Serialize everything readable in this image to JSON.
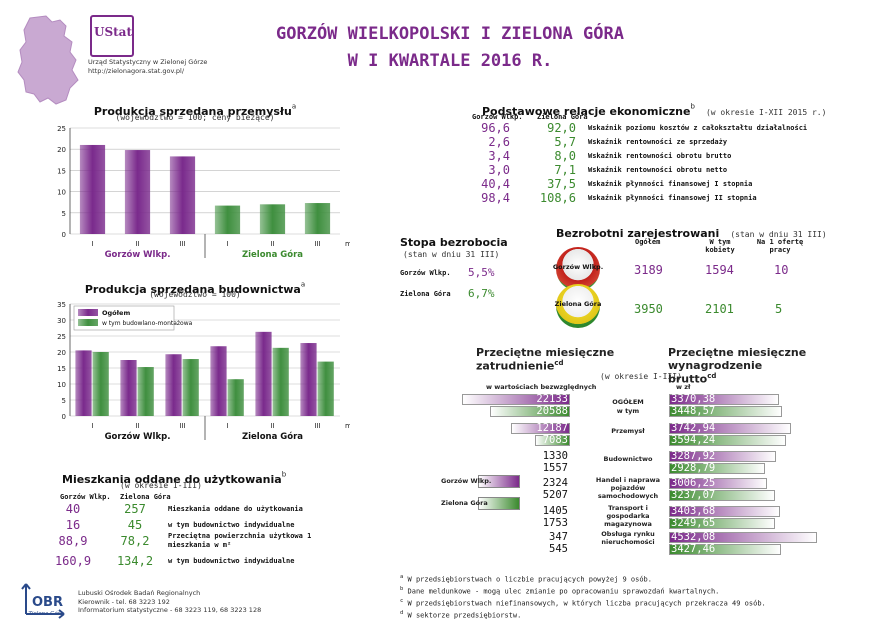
{
  "header": {
    "title_line1": "GORZÓW WIELKOPOLSKI I ZIELONA GÓRA",
    "title_line2": "W I KWARTALE 2016 R.",
    "office_name": "Urząd Statystyczny w Zielonej Górze",
    "office_url": "http://zielonagora.stat.gov.pl/",
    "logo_text": "UStat"
  },
  "colors": {
    "purple": "#7b2a8a",
    "green": "#3b8a2e",
    "bar_purple": "#7a2a8c",
    "bar_green": "#3f8f3f"
  },
  "chart_industry": {
    "title": "Produkcja sprzedana przemysłu",
    "title_sup": "a",
    "subtitle": "(województwo = 100; ceny bieżące)",
    "axis_unit": "miesiące"
  },
  "chart_construction": {
    "title": "Produkcja sprzedana budownictwa",
    "title_sup": "a",
    "subtitle": "(województwo = 100)",
    "legend_total": "Ogółem",
    "legend_sub": "w tym budowlano-montażowa",
    "axis_unit": "miesiące"
  },
  "chart_data": [
    {
      "type": "bar",
      "title": "Produkcja sprzedana przemysłu",
      "categories": [
        "I",
        "II",
        "III",
        "I",
        "II",
        "III"
      ],
      "groups": [
        "Gorzów Wlkp.",
        "Zielona Góra"
      ],
      "values": [
        21.0,
        19.8,
        18.3,
        6.7,
        7.0,
        7.3
      ],
      "ylim": [
        0,
        25
      ],
      "yticks": [
        0,
        5,
        10,
        15,
        20,
        25
      ],
      "xlabel": "miesiące",
      "grid": true
    },
    {
      "type": "bar",
      "title": "Produkcja sprzedana budownictwa",
      "categories": [
        "I",
        "II",
        "III",
        "I",
        "II",
        "III"
      ],
      "groups": [
        "Gorzów Wlkp.",
        "Zielona Góra"
      ],
      "series": [
        {
          "name": "Ogółem",
          "values": [
            20.5,
            17.5,
            19.3,
            21.8,
            26.3,
            22.8
          ]
        },
        {
          "name": "w tym budowlano-montażowa",
          "values": [
            20.0,
            15.3,
            17.8,
            11.5,
            21.3,
            17.0
          ]
        }
      ],
      "ylim": [
        0,
        35
      ],
      "yticks": [
        0,
        5,
        10,
        15,
        20,
        25,
        30,
        35
      ],
      "xlabel": "miesiące",
      "grid": true
    }
  ],
  "economic": {
    "title": "Podstawowe relacje ekonomiczne",
    "title_sup": "b",
    "period": "(w okresie I-XII 2015 r.)",
    "col_gw": "Gorzów Wlkp.",
    "col_zg": "Zielona Góra",
    "rows": [
      {
        "gw": "96,6",
        "zg": "92,0",
        "label": "Wskaźnik poziomu kosztów z całokształtu działalności"
      },
      {
        "gw": "2,6",
        "zg": "5,7",
        "label": "Wskaźnik rentowności ze sprzedaży"
      },
      {
        "gw": "3,4",
        "zg": "8,0",
        "label": "Wskaźnik rentowności obrotu brutto"
      },
      {
        "gw": "3,0",
        "zg": "7,1",
        "label": "Wskaźnik rentowności obrotu netto"
      },
      {
        "gw": "40,4",
        "zg": "37,5",
        "label": "Wskaźnik płynności finansowej I stopnia"
      },
      {
        "gw": "98,4",
        "zg": "108,6",
        "label": "Wskaźnik płynności finansowej II stopnia"
      }
    ]
  },
  "unemployment": {
    "title": "Bezrobotni zarejestrowani",
    "period": "(stan w dniu 31 III)",
    "col_total": "Ogółem",
    "col_women": "W tym kobiety",
    "col_offer": "Na 1 ofertę pracy",
    "gw_badge": "Gorzów Wlkp.",
    "zg_badge": "Zielona Góra",
    "gw_total": "3189",
    "gw_women": "1594",
    "gw_offer": "10",
    "zg_total": "3950",
    "zg_women": "2101",
    "zg_offer": "5",
    "rate_title": "Stopa bezrobocia",
    "rate_period": "(stan w dniu 31 III)",
    "rate_gw_label": "Gorzów Wlkp.",
    "rate_gw": "5,5%",
    "rate_zg_label": "Zielona Góra",
    "rate_zg": "6,7%"
  },
  "employment": {
    "title_left": "Przeciętne miesięczne zatrudnienie",
    "title_left_sup": "cd",
    "title_right": "Przeciętne miesięczne wynagrodzenie brutto",
    "title_right_sup": "cd",
    "period": "(w okresie I-III)",
    "left_unit": "w wartościach bezwzględnych",
    "right_unit": "w zł",
    "legend_gw": "Gorzów Wlkp.",
    "legend_zg": "Zielona Góra",
    "rows": [
      {
        "label": "OGÓŁEM",
        "label2": "w tym",
        "emp_gw": "22133",
        "emp_zg": "20588",
        "emp_gw_v": 22133,
        "emp_zg_v": 20588,
        "wage_gw": "3370,38",
        "wage_zg": "3448,57",
        "wage_gw_v": 3370.38,
        "wage_zg_v": 3448.57
      },
      {
        "label": "Przemysł",
        "label2": "",
        "emp_gw": "12187",
        "emp_zg": "7083",
        "emp_gw_v": 12187,
        "emp_zg_v": 7083,
        "wage_gw": "3742,94",
        "wage_zg": "3594,24",
        "wage_gw_v": 3742.94,
        "wage_zg_v": 3594.24
      },
      {
        "label": "Budownictwo",
        "label2": "",
        "emp_gw": "1330",
        "emp_zg": "1557",
        "emp_gw_v": 1330,
        "emp_zg_v": 1557,
        "wage_gw": "3287,92",
        "wage_zg": "2928,79",
        "wage_gw_v": 3287.92,
        "wage_zg_v": 2928.79
      },
      {
        "label": "Handel i naprawa pojazdów samochodowych",
        "label2": "",
        "emp_gw": "2324",
        "emp_zg": "5207",
        "emp_gw_v": 2324,
        "emp_zg_v": 5207,
        "wage_gw": "3006,25",
        "wage_zg": "3237,07",
        "wage_gw_v": 3006.25,
        "wage_zg_v": 3237.07
      },
      {
        "label": "Transport i gospodarka magazynowa",
        "label2": "",
        "emp_gw": "1405",
        "emp_zg": "1753",
        "emp_gw_v": 1405,
        "emp_zg_v": 1753,
        "wage_gw": "3403,68",
        "wage_zg": "3249,65",
        "wage_gw_v": 3403.68,
        "wage_zg_v": 3249.65
      },
      {
        "label": "Obsługa rynku nieruchomości",
        "label2": "",
        "emp_gw": "347",
        "emp_zg": "545",
        "emp_gw_v": 347,
        "emp_zg_v": 545,
        "wage_gw": "4532,08",
        "wage_zg": "3427,46",
        "wage_gw_v": 4532.08,
        "wage_zg_v": 3427.46
      }
    ]
  },
  "housing": {
    "title": "Mieszkania oddane do użytkowania",
    "title_sup": "b",
    "period": "(w okresie I-III)",
    "col_gw": "Gorzów Wlkp.",
    "col_zg": "Zielona Góra",
    "rows": [
      {
        "gw": "40",
        "zg": "257",
        "label": "Mieszkania oddane do użytkowania"
      },
      {
        "gw": "16",
        "zg": "45",
        "label": "w tym budownictwo indywidualne"
      },
      {
        "gw": "88,9",
        "zg": "78,2",
        "label": "Przeciętna powierzchnia użytkowa 1 mieszkania w m²"
      },
      {
        "gw": "160,9",
        "zg": "134,2",
        "label": "w tym budownictwo indywidualne"
      }
    ]
  },
  "footer": {
    "org": "Lubuski Ośrodek Badań Regionalnych",
    "head": "Kierownik - tel. 68 3223 192",
    "info": "Informatorium statystyczne - 68 3223 119, 68 3223 128",
    "logo_text": "OBR",
    "logo_sub": "Zielona Góra"
  },
  "footnotes": [
    {
      "mark": "a",
      "text": "W przedsiębiorstwach o liczbie pracujących powyżej 9 osób."
    },
    {
      "mark": "b",
      "text": "Dane meldunkowe - mogą ulec zmianie po opracowaniu sprawozdań kwartalnych."
    },
    {
      "mark": "c",
      "text": "W przedsiębiorstwach niefinansowych, w których liczba pracujących przekracza 49 osób."
    },
    {
      "mark": "d",
      "text": "W sektorze przedsiębiorstw."
    }
  ]
}
